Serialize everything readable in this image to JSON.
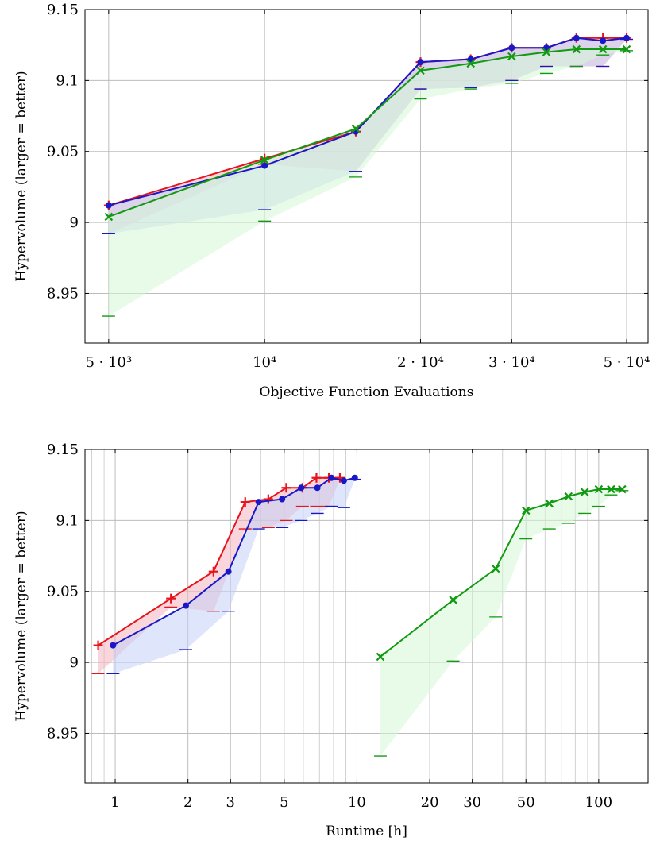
{
  "colors": {
    "red": "#e8131b",
    "blue": "#1818c8",
    "green": "#119a11",
    "red_fill": "#f3b5bf",
    "blue_fill": "#c4cff5",
    "green_fill": "#d5f7d5"
  },
  "chart_data": [
    {
      "type": "line",
      "xscale": "log",
      "xlabel": "Objective Function Evaluations",
      "ylabel": "Hypervolume (larger = better)",
      "xlim": [
        4500,
        55000
      ],
      "ylim": [
        8.915,
        9.15
      ],
      "grid": true,
      "xticks": [
        {
          "value": 5000,
          "label": "5 · 10³"
        },
        {
          "value": 10000,
          "label": "10⁴"
        },
        {
          "value": 20000,
          "label": "2 · 10⁴"
        },
        {
          "value": 30000,
          "label": "3 · 10⁴"
        },
        {
          "value": 50000,
          "label": "5 · 10⁴"
        }
      ],
      "yticks": [
        {
          "value": 8.95,
          "label": "8.95"
        },
        {
          "value": 9.0,
          "label": "9"
        },
        {
          "value": 9.05,
          "label": "9.05"
        },
        {
          "value": 9.1,
          "label": "9.1"
        },
        {
          "value": 9.15,
          "label": "9.15"
        }
      ],
      "series": [
        {
          "color": "red",
          "marker": "plus",
          "x": [
            5000,
            10000,
            15000,
            20000,
            25000,
            30000,
            35000,
            40000,
            45000,
            50000
          ],
          "y": [
            9.012,
            9.045,
            9.064,
            9.113,
            9.115,
            9.123,
            9.123,
            9.13,
            9.13,
            9.13
          ],
          "min": [
            8.992,
            9.041,
            9.036,
            9.094,
            9.095,
            9.1,
            9.11,
            9.11,
            9.11,
            9.129
          ]
        },
        {
          "color": "blue",
          "marker": "dot",
          "x": [
            5000,
            10000,
            15000,
            20000,
            25000,
            30000,
            35000,
            40000,
            45000,
            50000
          ],
          "y": [
            9.012,
            9.04,
            9.064,
            9.113,
            9.115,
            9.123,
            9.123,
            9.13,
            9.128,
            9.13
          ],
          "min": [
            8.992,
            9.009,
            9.036,
            9.094,
            9.095,
            9.1,
            9.11,
            9.11,
            9.11,
            9.129
          ]
        },
        {
          "color": "green",
          "marker": "cross",
          "x": [
            5000,
            10000,
            15000,
            20000,
            25000,
            30000,
            35000,
            40000,
            45000,
            50000
          ],
          "y": [
            9.004,
            9.044,
            9.066,
            9.107,
            9.112,
            9.117,
            9.12,
            9.122,
            9.122,
            9.122
          ],
          "min": [
            8.934,
            9.001,
            9.032,
            9.087,
            9.094,
            9.098,
            9.105,
            9.11,
            9.118,
            9.121
          ]
        }
      ]
    },
    {
      "type": "line",
      "xscale": "log",
      "xlabel": "Runtime [h]",
      "ylabel": "Hypervolume (larger = better)",
      "xlim": [
        0.75,
        160
      ],
      "ylim": [
        8.915,
        9.15
      ],
      "grid": true,
      "minor_x": [
        0.8,
        0.9,
        4,
        6,
        7,
        8,
        9,
        40,
        60,
        70,
        80,
        90
      ],
      "xticks": [
        {
          "value": 1,
          "label": "1"
        },
        {
          "value": 2,
          "label": "2"
        },
        {
          "value": 3,
          "label": "3"
        },
        {
          "value": 5,
          "label": "5"
        },
        {
          "value": 10,
          "label": "10"
        },
        {
          "value": 20,
          "label": "20"
        },
        {
          "value": 30,
          "label": "30"
        },
        {
          "value": 50,
          "label": "50"
        },
        {
          "value": 100,
          "label": "100"
        }
      ],
      "yticks": [
        {
          "value": 8.95,
          "label": "8.95"
        },
        {
          "value": 9.0,
          "label": "9"
        },
        {
          "value": 9.05,
          "label": "9.05"
        },
        {
          "value": 9.1,
          "label": "9.1"
        },
        {
          "value": 9.15,
          "label": "9.15"
        }
      ],
      "series": [
        {
          "color": "red",
          "marker": "plus",
          "x": [
            0.85,
            1.7,
            2.55,
            3.45,
            4.3,
            5.1,
            5.95,
            6.8,
            7.65,
            8.5
          ],
          "y": [
            9.012,
            9.045,
            9.064,
            9.113,
            9.115,
            9.123,
            9.123,
            9.13,
            9.13,
            9.13
          ],
          "min": [
            8.992,
            9.039,
            9.036,
            9.094,
            9.095,
            9.1,
            9.11,
            9.11,
            9.11,
            9.129
          ]
        },
        {
          "color": "blue",
          "marker": "dot",
          "x": [
            0.98,
            1.96,
            2.94,
            3.92,
            4.9,
            5.88,
            6.86,
            7.84,
            8.82,
            9.8
          ],
          "y": [
            9.012,
            9.04,
            9.064,
            9.113,
            9.115,
            9.123,
            9.123,
            9.13,
            9.128,
            9.13
          ],
          "min": [
            8.992,
            9.009,
            9.036,
            9.094,
            9.095,
            9.1,
            9.105,
            9.11,
            9.109,
            9.129
          ]
        },
        {
          "color": "green",
          "marker": "cross",
          "x": [
            12.5,
            25,
            37.5,
            50,
            62.5,
            75,
            87.5,
            100,
            112.5,
            125
          ],
          "y": [
            9.004,
            9.044,
            9.066,
            9.107,
            9.112,
            9.117,
            9.12,
            9.122,
            9.122,
            9.122
          ],
          "min": [
            8.934,
            9.001,
            9.032,
            9.087,
            9.094,
            9.098,
            9.105,
            9.11,
            9.118,
            9.121
          ]
        }
      ]
    }
  ]
}
